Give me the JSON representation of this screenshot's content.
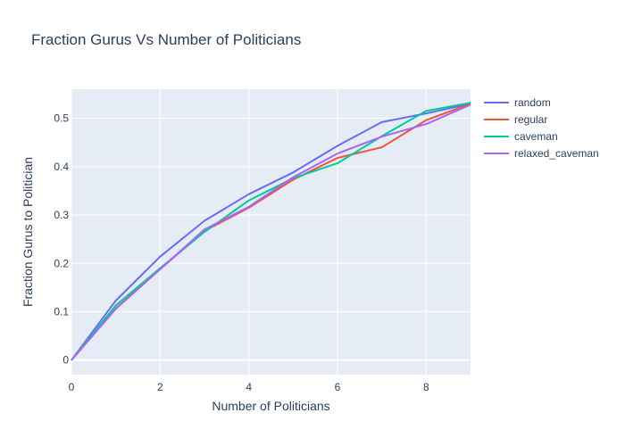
{
  "chart_data": {
    "type": "line",
    "title": "Fraction Gurus Vs Number of Politicians",
    "xlabel": "Number of Politicians",
    "ylabel": "Fraction Gurus to Politician",
    "xlim": [
      0,
      9
    ],
    "ylim": [
      -0.03,
      0.56
    ],
    "xticks": [
      0,
      2,
      4,
      6,
      8
    ],
    "yticks": [
      0,
      0.1,
      0.2,
      0.3,
      0.4,
      0.5
    ],
    "grid": true,
    "legend_position": "right",
    "background": "#e5ecf6",
    "x": [
      0,
      1,
      2,
      3,
      4,
      5,
      6,
      7,
      8,
      9
    ],
    "series": [
      {
        "name": "random",
        "color": "#636efa",
        "values": [
          0,
          0.123,
          0.214,
          0.288,
          0.343,
          0.388,
          0.443,
          0.492,
          0.51,
          0.53
        ]
      },
      {
        "name": "regular",
        "color": "#ef553b",
        "values": [
          0,
          0.107,
          0.188,
          0.267,
          0.315,
          0.373,
          0.418,
          0.44,
          0.496,
          0.53
        ]
      },
      {
        "name": "caveman",
        "color": "#00cc96",
        "values": [
          0,
          0.113,
          0.19,
          0.265,
          0.33,
          0.376,
          0.407,
          0.463,
          0.515,
          0.532
        ]
      },
      {
        "name": "relaxed_caveman",
        "color": "#ab63fa",
        "values": [
          0,
          0.106,
          0.188,
          0.27,
          0.317,
          0.378,
          0.427,
          0.462,
          0.488,
          0.528
        ]
      }
    ]
  }
}
